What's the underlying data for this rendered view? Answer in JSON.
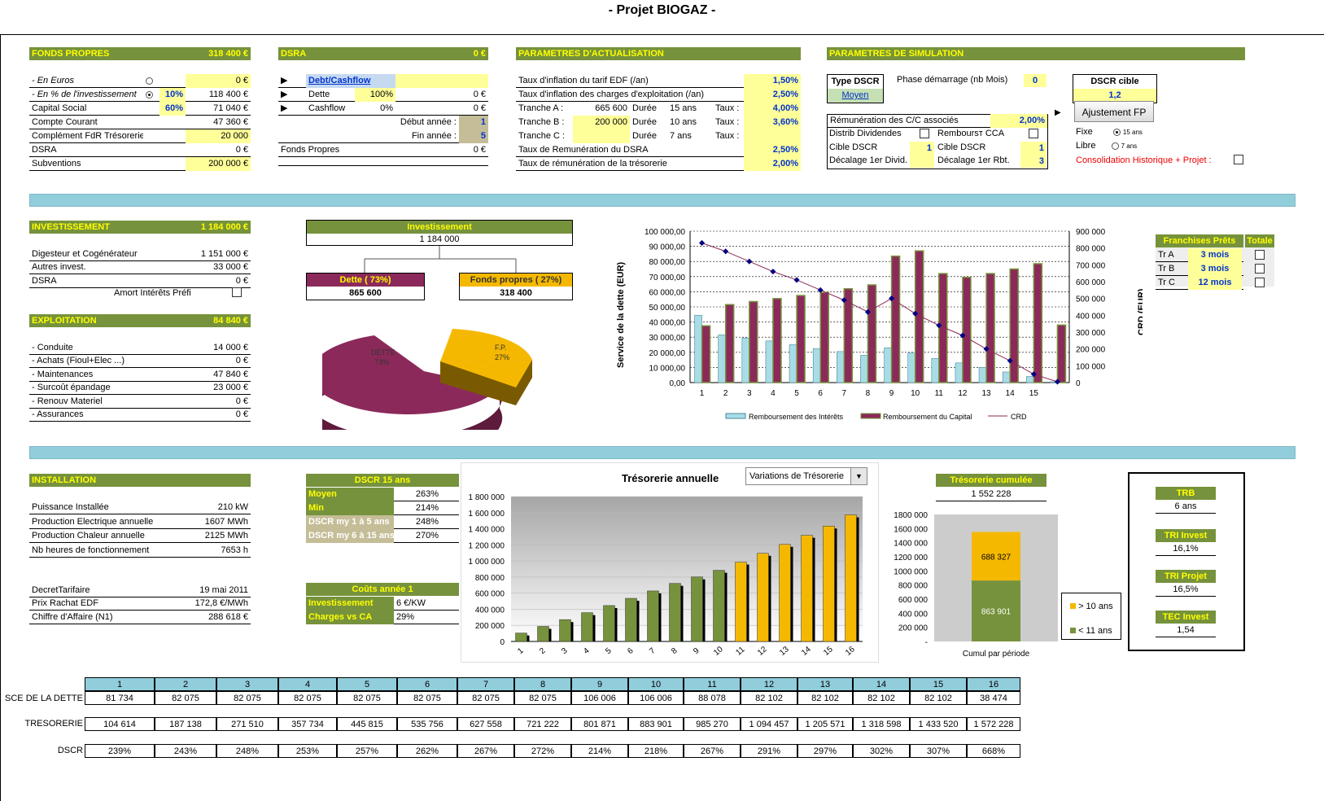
{
  "title": "- Projet BIOGAZ -",
  "fonds": {
    "header": "FONDS PROPRES",
    "header_val": "318 400 €",
    "rows": [
      {
        "label": "- En Euros",
        "pct": "",
        "val": "0 €"
      },
      {
        "label": "- En % de l'investissement",
        "pct": "10%",
        "val": "118 400 €"
      },
      {
        "label": "Capital Social",
        "pct": "60%",
        "val": "71 040 €"
      },
      {
        "label": "Compte Courant",
        "pct": "",
        "val": "47 360 €"
      },
      {
        "label": "Complément FdR Trésorerie",
        "pct": "",
        "val": "20 000"
      },
      {
        "label": "DSRA",
        "pct": "",
        "val": "0 €"
      },
      {
        "label": "Subventions",
        "pct": "",
        "val": "200 000 €"
      }
    ]
  },
  "dsra": {
    "header": "DSRA",
    "header_val": "0 €",
    "link": "Debt/Cashflow",
    "dette_label": "Dette",
    "dette_pct": "100%",
    "dette_val": "0 €",
    "cash_label": "Cashflow",
    "cash_pct": "0%",
    "cash_val": "0 €",
    "debut_label": "Début année :",
    "debut_val": "1",
    "fin_label": "Fin année :",
    "fin_val": "5",
    "fp_label": "Fonds Propres",
    "fp_val": "0 €"
  },
  "actu": {
    "header": "PARAMETRES D'ACTUALISATION",
    "r1_label": "Taux d'inflation du tarif EDF (/an)",
    "r1_val": "1,50%",
    "r2_label": "Taux d'inflation des charges d'exploitation (/an)",
    "r2_val": "2,50%",
    "tranches": [
      {
        "name": "Tranche A :",
        "amount": "665 600",
        "dlabel": "Durée",
        "dur": "15 ans",
        "tlabel": "Taux :",
        "rate": "4,00%"
      },
      {
        "name": "Tranche B :",
        "amount": "200 000",
        "dlabel": "Durée",
        "dur": "10 ans",
        "tlabel": "Taux :",
        "rate": "3,60%"
      },
      {
        "name": "Tranche C :",
        "amount": "",
        "dlabel": "Durée",
        "dur": "7 ans",
        "tlabel": "Taux :",
        "rate": ""
      }
    ],
    "r6_label": "Taux de Remunération du  DSRA",
    "r6_val": "2,50%",
    "r7_label": "Taux de rémunération de la trésorerie",
    "r7_val": "2,00%"
  },
  "simu": {
    "header": "PARAMETRES DE SIMULATION",
    "type_label": "Type DSCR",
    "type_val": "Moyen",
    "phase_label": "Phase démarrage (nb Mois)",
    "phase_val": "0",
    "cible_label": "DSCR cible",
    "cible_val": "1,2",
    "button": "Ajustement FP",
    "remun_label": "Rémunération des C/C associés",
    "remun_val": "2,00%",
    "distrib_label": "Distrib Dividendes",
    "rembourst_label": "Remboursт CCA",
    "cible1_label": "Cible DSCR",
    "cible1_val": "1",
    "cible2_label": "Cible DSCR",
    "cible2_val": "1",
    "decal1_label": "Décalage 1er Divid.",
    "decal1_val": "",
    "decal2_label": "Décalage 1er Rbt.",
    "decal2_val": "3",
    "fixe_label": "Fixe",
    "fixe_val": "15 ans",
    "libre_label": "Libre",
    "libre_val": "7 ans",
    "conso_label": "Consolidation Historique + Projet :"
  },
  "invest": {
    "header": "INVESTISSEMENT",
    "header_val": "1 184 000 €",
    "rows": [
      {
        "label": "Digesteur et Cogénérateur",
        "val": "1 151 000 €"
      },
      {
        "label": "Autres invest.",
        "val": "33 000 €"
      },
      {
        "label": "DSRA",
        "val": "0 €"
      }
    ],
    "amort_label": "Amort Intérêts Préfi"
  },
  "exploit": {
    "header": "EXPLOITATION",
    "header_val": "84 840 €",
    "rows": [
      {
        "label": "- Conduite",
        "val": "14 000 €"
      },
      {
        "label": "- Achats (Fioul+Elec ...)",
        "val": "0 €"
      },
      {
        "label": "- Maintenances",
        "val": "47 840 €"
      },
      {
        "label": "- Surcoût épandage",
        "val": "23 000 €"
      },
      {
        "label": "- Renouv Materiel",
        "val": "0 €"
      },
      {
        "label": "- Assurances",
        "val": "0 €"
      }
    ]
  },
  "tree": {
    "root_label": "Investissement",
    "root_val": "1 184 000",
    "left_label": "Dette ( 73%)",
    "left_val": "865 600",
    "right_label": "Fonds propres ( 27%)",
    "right_val": "318 400",
    "pie_dette": "DETTE",
    "pie_dette_pct": "73%",
    "pie_fp": "F.P.",
    "pie_fp_pct": "27%",
    "colors": {
      "dette": "#8b2a5a",
      "fp": "#f5b800"
    }
  },
  "debt_chart": {
    "ylabel_left": "Service de la dette (EUR)",
    "ylabel_right": "CRD (EUR)",
    "left_ticks": [
      "100 000,00",
      "90 000,00",
      "80 000,00",
      "70 000,00",
      "60 000,00",
      "50 000,00",
      "40 000,00",
      "30 000,00",
      "20 000,00",
      "10 000,00",
      "0,00"
    ],
    "right_ticks": [
      "900 000",
      "800 000",
      "700 000",
      "600 000",
      "500 000",
      "400 000",
      "300 000",
      "200 000",
      "100 000",
      "0"
    ],
    "legend": [
      "Remboursement des Intérêts",
      "Remboursement du Capital",
      "CRD"
    ]
  },
  "franchises": {
    "header": "Franchises Prêts",
    "header2": "Totale",
    "rows": [
      {
        "name": "Tr A",
        "val": "3 mois"
      },
      {
        "name": "Tr B",
        "val": "3 mois"
      },
      {
        "name": "Tr C",
        "val": "12 mois"
      }
    ]
  },
  "install": {
    "header": "INSTALLATION",
    "rows": [
      {
        "label": "Puissance Installée",
        "val": "210 kW"
      },
      {
        "label": "Production Electrique annuelle",
        "val": "1607 MWh"
      },
      {
        "label": "Production Chaleur annuelle",
        "val": "2125 MWh"
      },
      {
        "label": "Nb heures de fonctionnement",
        "val": "7653 h"
      }
    ],
    "rows2": [
      {
        "label": "DecretTarifaire",
        "val": "19 mai 2011"
      },
      {
        "label": "Prix Rachat EDF",
        "val": "172,8 €/MWh"
      },
      {
        "label": "Chiffre d'Affaire (N1)",
        "val": "288 618 €"
      }
    ]
  },
  "dscr15": {
    "header": "DSCR 15 ans",
    "rows": [
      {
        "label": "Moyen",
        "val": "263%"
      },
      {
        "label": "Min",
        "val": "214%"
      },
      {
        "label": "DSCR my 1 à 5 ans",
        "val": "248%"
      },
      {
        "label": "DSCR my 6 à 15 ans",
        "val": "270%"
      }
    ]
  },
  "couts": {
    "header": "Coûts année 1",
    "rows": [
      {
        "label": "Investissement",
        "val": "6 €/KW"
      },
      {
        "label": "Charges vs CA",
        "val": "29%"
      }
    ]
  },
  "treso_chart": {
    "title": "Trésorerie annuelle",
    "dropdown": "Variations de Trésorerie",
    "ticks": [
      "1 800 000",
      "1 600 000",
      "1 400 000",
      "1 200 000",
      "1 000 000",
      "800 000",
      "600 000",
      "400 000",
      "200 000",
      "0"
    ]
  },
  "cumul": {
    "header": "Trésorerie cumulée",
    "total": "1 552 228",
    "ticks": [
      "1800 000",
      "1600 000",
      "1400 000",
      "1200 000",
      "1000 000",
      "800 000",
      "600 000",
      "400 000",
      "200 000",
      "-"
    ],
    "top_val": "688 327",
    "bottom_val": "863 901",
    "xlabel": "Cumul par période",
    "legend_top": "> 10 ans",
    "legend_bottom": "< 11 ans"
  },
  "kpis": [
    {
      "label": "TRB",
      "val": "6 ans"
    },
    {
      "label": "TRI Invest",
      "val": "16,1%"
    },
    {
      "label": "TRI Projet",
      "val": "16,5%"
    },
    {
      "label": "TEC Invest",
      "val": "1,54"
    }
  ],
  "bottom_table": {
    "headers": [
      "1",
      "2",
      "3",
      "4",
      "5",
      "6",
      "7",
      "8",
      "9",
      "10",
      "11",
      "12",
      "13",
      "14",
      "15",
      "16"
    ],
    "rows": [
      {
        "label": "SCE DE LA DETTE",
        "vals": [
          "81 734",
          "82 075",
          "82 075",
          "82 075",
          "82 075",
          "82 075",
          "82 075",
          "82 075",
          "106 006",
          "106 006",
          "88 078",
          "82 102",
          "82 102",
          "82 102",
          "82 102",
          "38 474"
        ]
      },
      {
        "label": "TRESORERIE",
        "vals": [
          "104 614",
          "187 138",
          "271 510",
          "357 734",
          "445 815",
          "535 756",
          "627 558",
          "721 222",
          "801 871",
          "883 901",
          "985 270",
          "1 094 457",
          "1 205 571",
          "1 318 598",
          "1 433 520",
          "1 572 228"
        ]
      },
      {
        "label": "DSCR",
        "vals": [
          "239%",
          "243%",
          "248%",
          "253%",
          "257%",
          "262%",
          "267%",
          "272%",
          "214%",
          "218%",
          "267%",
          "291%",
          "297%",
          "302%",
          "307%",
          "668%"
        ]
      }
    ]
  },
  "chart_data": [
    {
      "type": "bar",
      "title": "",
      "ylabel": "Service de la dette (EUR)",
      "y2label": "CRD (EUR)",
      "categories": [
        "1",
        "2",
        "3",
        "4",
        "5",
        "6",
        "7",
        "8",
        "9",
        "10",
        "11",
        "12",
        "13",
        "14",
        "15",
        ""
      ],
      "ylim": [
        0,
        100000
      ],
      "y2lim": [
        0,
        900000
      ],
      "series": [
        {
          "name": "Remboursement des Intérêts",
          "axis": "left",
          "values": [
            44500,
            31500,
            29500,
            27500,
            25000,
            22500,
            20500,
            18000,
            23000,
            19500,
            16000,
            13000,
            10000,
            7000,
            4000,
            500
          ]
        },
        {
          "name": "Remboursement du Capital",
          "axis": "left",
          "values": [
            37500,
            51500,
            53500,
            55500,
            57500,
            59500,
            62000,
            64500,
            83500,
            87000,
            72000,
            69500,
            72000,
            75000,
            78500,
            38000
          ]
        },
        {
          "name": "CRD",
          "axis": "right",
          "type": "line",
          "values": [
            830000,
            780000,
            720000,
            660000,
            610000,
            550000,
            490000,
            420000,
            500000,
            410000,
            340000,
            280000,
            200000,
            130000,
            50000,
            5000
          ]
        }
      ],
      "legend": "bottom"
    },
    {
      "type": "bar",
      "title": "Trésorerie annuelle",
      "categories": [
        "1",
        "2",
        "3",
        "4",
        "5",
        "6",
        "7",
        "8",
        "9",
        "10",
        "11",
        "12",
        "13",
        "14",
        "15",
        "16"
      ],
      "ylim": [
        0,
        1800000
      ],
      "series": [
        {
          "name": "",
          "values": [
            104614,
            187138,
            271510,
            357734,
            445815,
            535756,
            627558,
            721222,
            801871,
            883901,
            985270,
            1094457,
            1205571,
            1318598,
            1433520,
            1572228
          ]
        }
      ],
      "colors": {
        "first_10": "#76923c",
        "after_10": "#f5b800"
      }
    },
    {
      "type": "bar",
      "title": "Trésorerie cumulée",
      "categories": [
        "Cumul par période"
      ],
      "ylim": [
        0,
        1800000
      ],
      "series": [
        {
          "name": "< 11 ans",
          "values": [
            863901
          ]
        },
        {
          "name": "> 10 ans",
          "values": [
            688327
          ]
        }
      ],
      "stacked": true
    },
    {
      "type": "pie",
      "labels": [
        "DETTE",
        "F.P."
      ],
      "values": [
        73,
        27
      ]
    }
  ]
}
